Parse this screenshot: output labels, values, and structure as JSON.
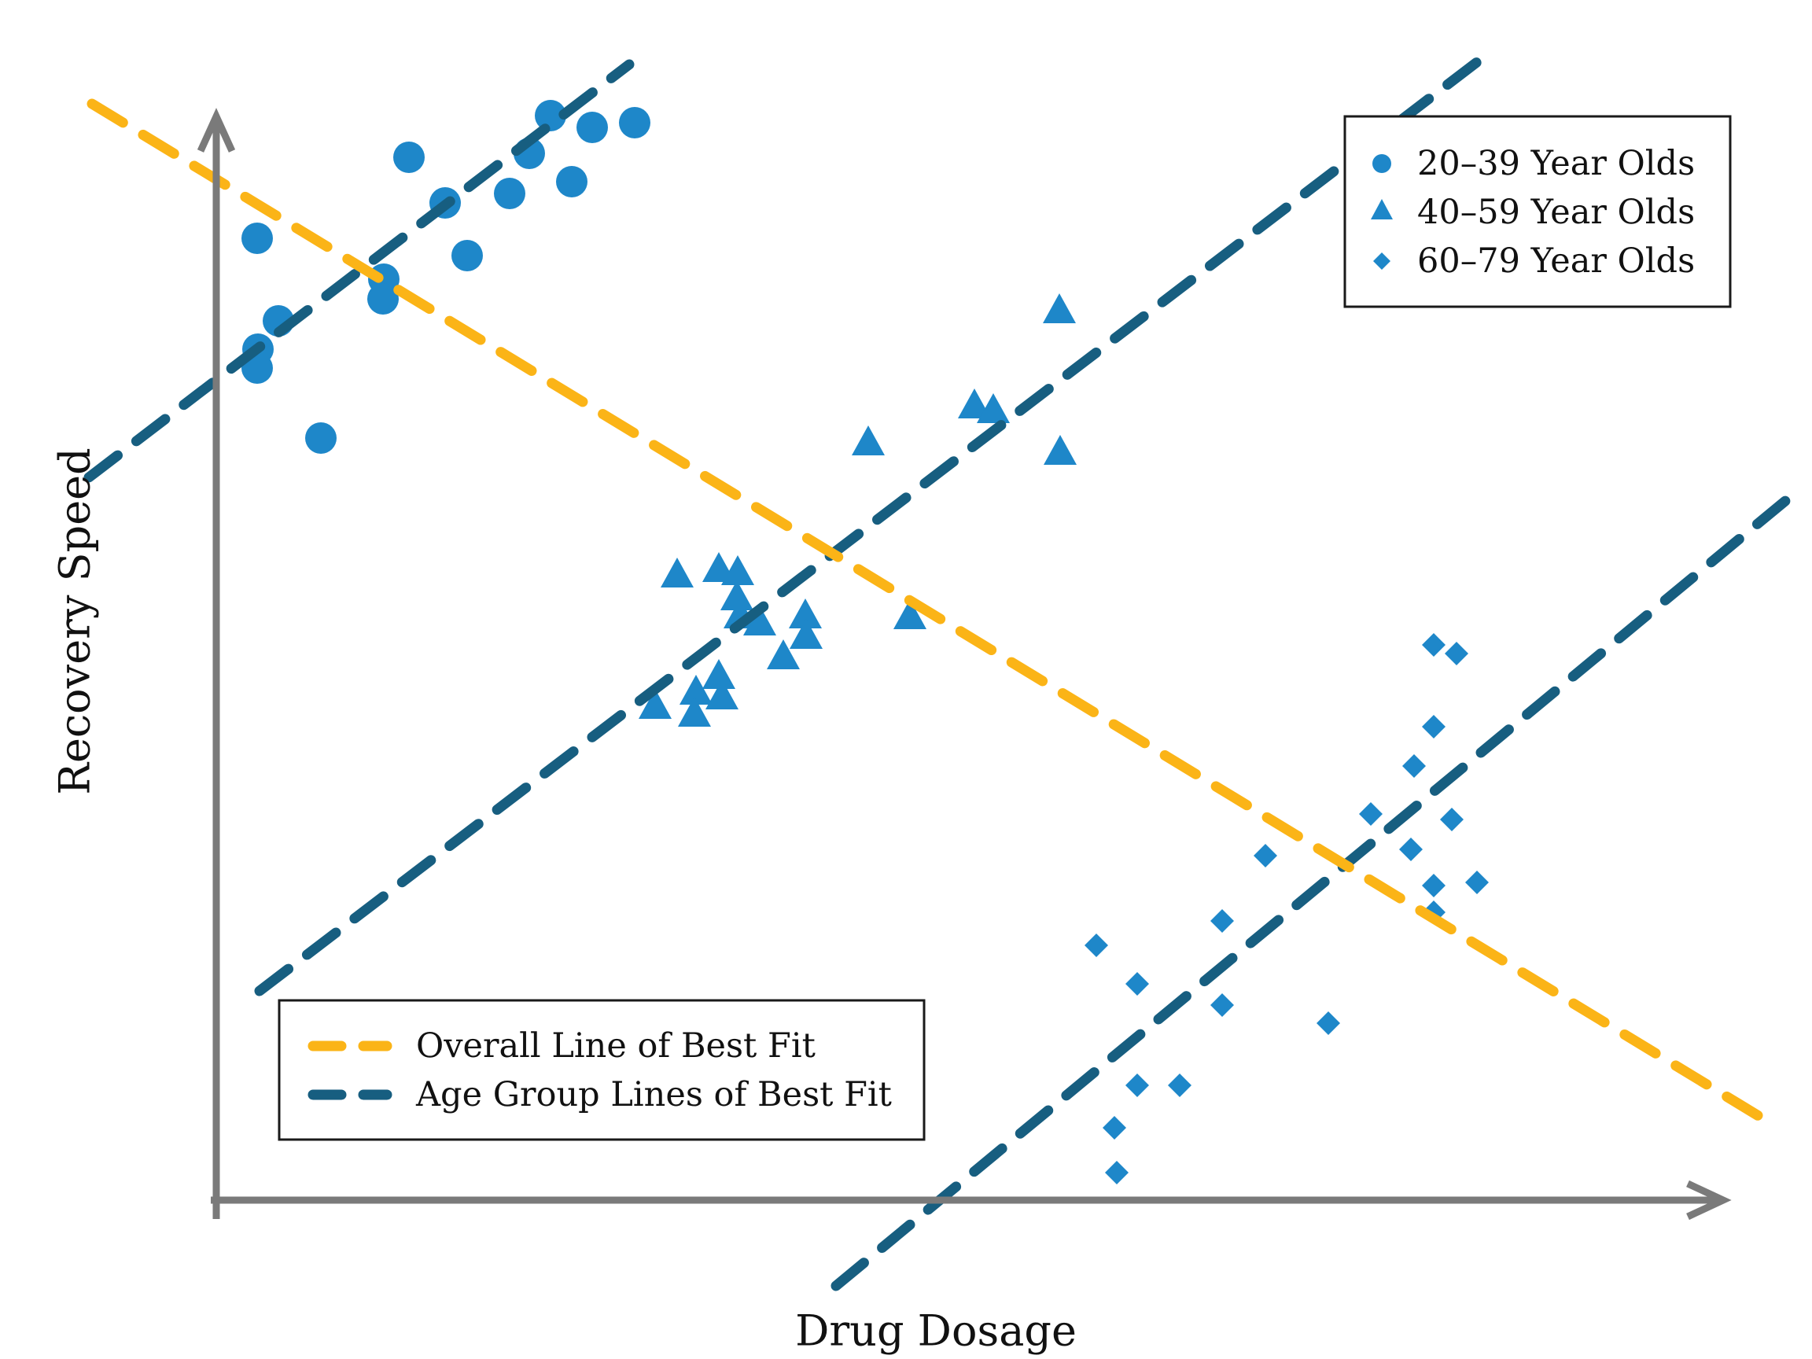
{
  "axes": {
    "x_label": "Drug Dosage",
    "y_label": "Recovery Speed",
    "tick_labels": "none shown"
  },
  "colors": {
    "marker_blue": "#1E87C9",
    "group_line_blue": "#175E80",
    "overall_line_yellow": "#FBB417",
    "axis_gray": "#7A7A7A",
    "text_black": "#111111",
    "legend_border": "#1A1A1A",
    "background": "#FFFFFF"
  },
  "legend_markers": {
    "items": [
      {
        "label": "20–39 Year Olds",
        "marker": "circle"
      },
      {
        "label": "40–59 Year Olds",
        "marker": "triangle"
      },
      {
        "label": "60–79 Year Olds",
        "marker": "diamond"
      }
    ]
  },
  "legend_lines": {
    "items": [
      {
        "label": "Overall Line of Best Fit",
        "color_key": "overall_line_yellow"
      },
      {
        "label": "Age Group Lines of Best Fit",
        "color_key": "group_line_blue"
      }
    ]
  },
  "chart_data": {
    "type": "scatter",
    "title": "",
    "xlabel": "Drug Dosage",
    "ylabel": "Recovery Speed",
    "axis_numeric_labels": false,
    "units": "screen_px (origin top-left, y increases downward)",
    "series": [
      {
        "name": "20–39 Year Olds",
        "marker": "circle",
        "points": [
          [
            700,
            147
          ],
          [
            753,
            162
          ],
          [
            807,
            156
          ],
          [
            673,
            195
          ],
          [
            727,
            231
          ],
          [
            648,
            246
          ],
          [
            566,
            258
          ],
          [
            520,
            200
          ],
          [
            594,
            325
          ],
          [
            488,
            355
          ],
          [
            487,
            380
          ],
          [
            354,
            408
          ],
          [
            328,
            444
          ],
          [
            327,
            468
          ],
          [
            327,
            303
          ],
          [
            408,
            557
          ]
        ]
      },
      {
        "name": "40–59 Year Olds",
        "marker": "triangle",
        "points": [
          [
            1347,
            398
          ],
          [
            1239,
            519
          ],
          [
            1263,
            525
          ],
          [
            1104,
            566
          ],
          [
            1348,
            578
          ],
          [
            861,
            734
          ],
          [
            914,
            727
          ],
          [
            938,
            731
          ],
          [
            937,
            763
          ],
          [
            941,
            786
          ],
          [
            966,
            795
          ],
          [
            1024,
            786
          ],
          [
            1025,
            812
          ],
          [
            996,
            838
          ],
          [
            1157,
            787
          ],
          [
            914,
            863
          ],
          [
            885,
            883
          ],
          [
            918,
            889
          ],
          [
            833,
            901
          ],
          [
            883,
            911
          ]
        ]
      },
      {
        "name": "60–79 Year Olds",
        "marker": "diamond",
        "points": [
          [
            1823,
            820
          ],
          [
            1852,
            831
          ],
          [
            1823,
            924
          ],
          [
            1798,
            974
          ],
          [
            1743,
            1035
          ],
          [
            1846,
            1042
          ],
          [
            1794,
            1080
          ],
          [
            1609,
            1088
          ],
          [
            1823,
            1126
          ],
          [
            1878,
            1122
          ],
          [
            1823,
            1160
          ],
          [
            1554,
            1171
          ],
          [
            1394,
            1202
          ],
          [
            1446,
            1251
          ],
          [
            1554,
            1278
          ],
          [
            1689,
            1301
          ],
          [
            1446,
            1380
          ],
          [
            1500,
            1380
          ],
          [
            1417,
            1434
          ],
          [
            1420,
            1491
          ]
        ]
      }
    ],
    "fit_lines": {
      "overall": {
        "name": "Overall Line of Best Fit",
        "from": [
          117,
          132
        ],
        "to": [
          2256,
          1431
        ],
        "slope_direction": "negative (recovery decreases with dosage overall)"
      },
      "groups": [
        {
          "name": "20–39 group line",
          "from": [
            113,
            607
          ],
          "to": [
            800,
            82
          ]
        },
        {
          "name": "40–59 group line",
          "from": [
            330,
            1260
          ],
          "to": [
            1895,
            66
          ]
        },
        {
          "name": "60–79 group line",
          "from": [
            1063,
            1635
          ],
          "to": [
            2270,
            637
          ]
        }
      ],
      "group_slope_direction": "positive within each age group (Simpson's paradox)"
    }
  }
}
